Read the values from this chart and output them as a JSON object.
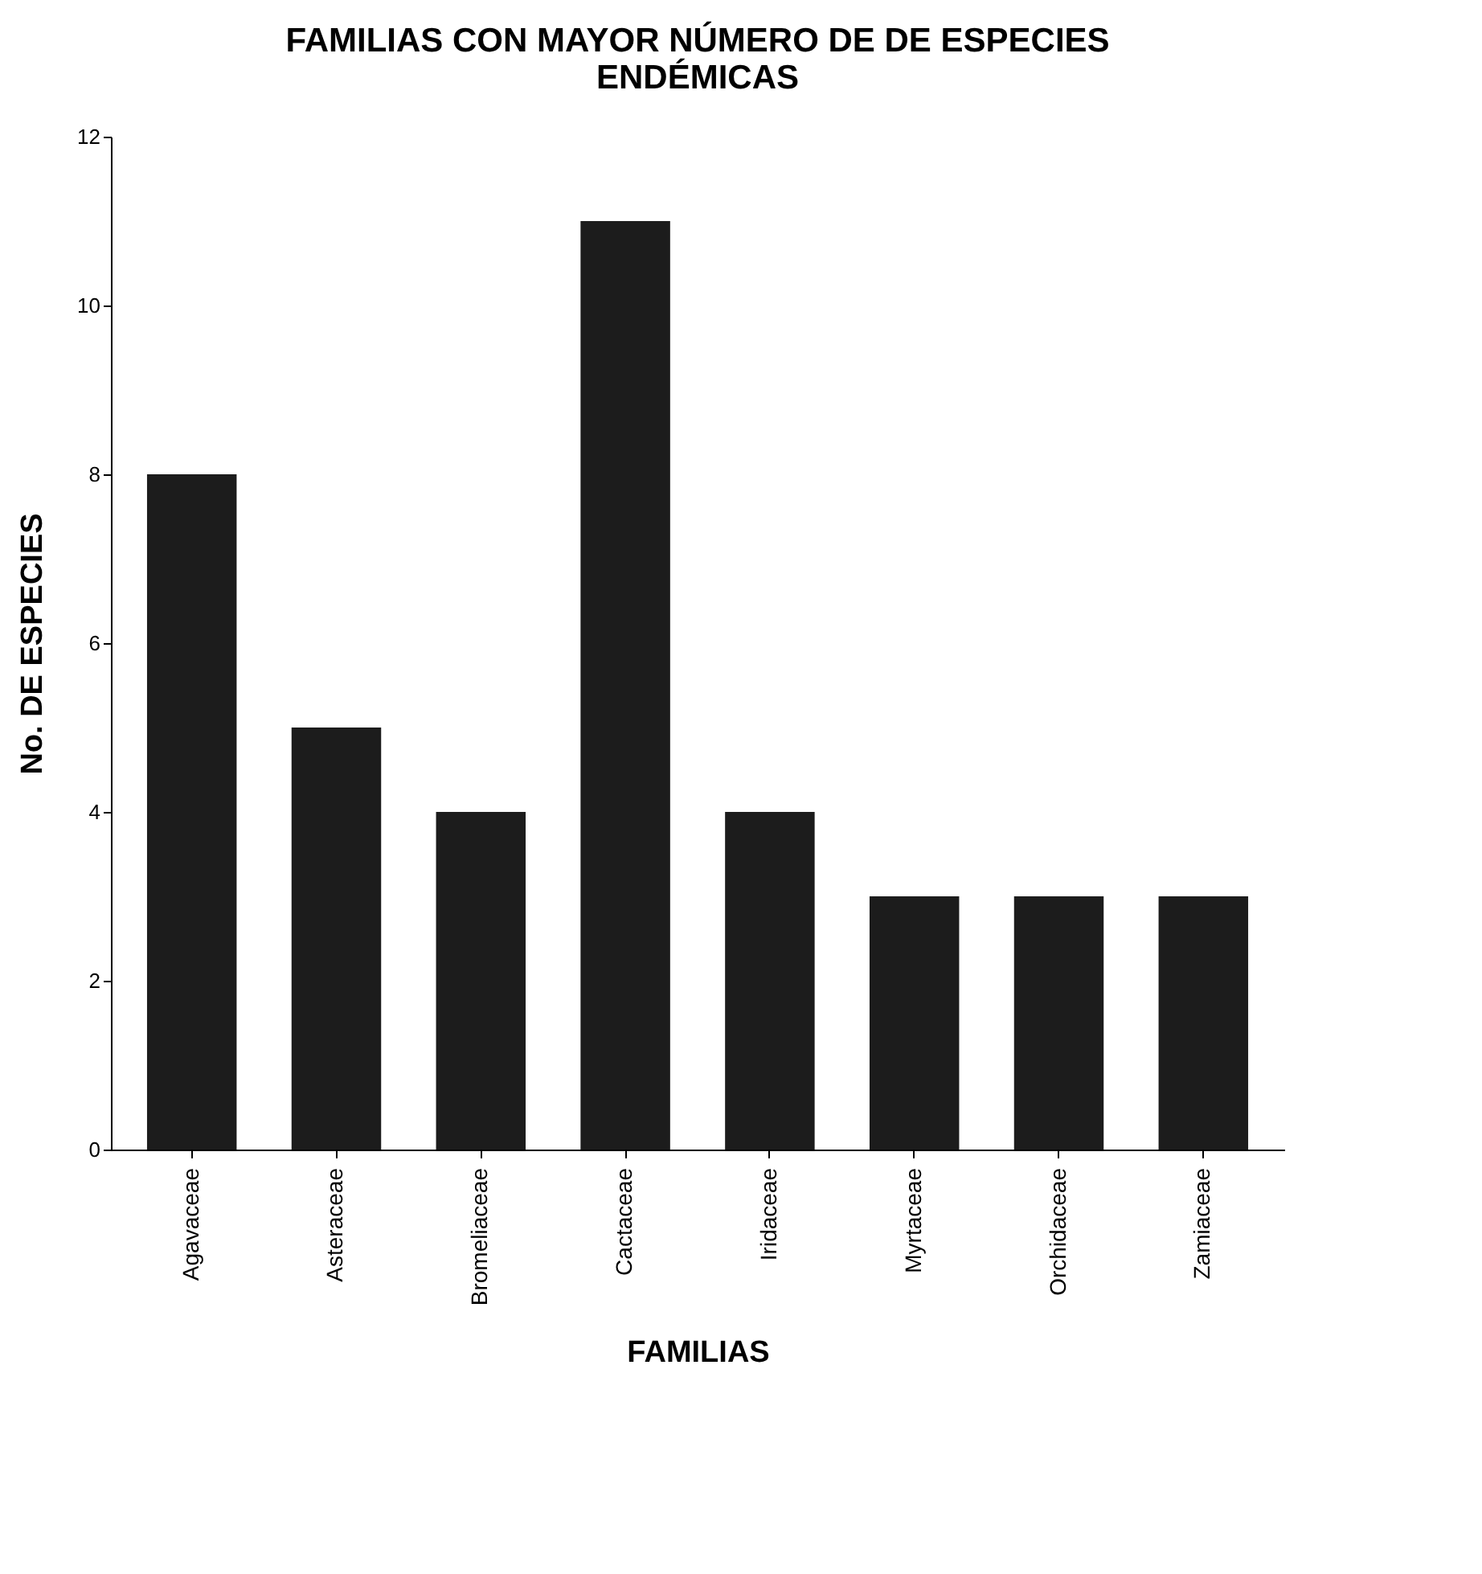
{
  "chart_data": {
    "type": "bar",
    "title": "FAMILIAS CON MAYOR  NÚMERO DE DE ESPECIES\nENDÉMICAS",
    "xlabel": "FAMILIAS",
    "ylabel": "No. DE ESPECIES",
    "categories": [
      "Agavaceae",
      "Asteraceae",
      "Bromeliaceae",
      "Cactaceae",
      "Iridaceae",
      "Myrtaceae",
      "Orchidaceae",
      "Zamiaceae"
    ],
    "values": [
      8,
      5,
      4,
      11,
      4,
      3,
      3,
      3
    ],
    "color": "#1c1c1c",
    "ylim": [
      0,
      12
    ],
    "yticks": [
      0,
      2,
      4,
      6,
      8,
      10,
      12
    ],
    "grid": false
  }
}
